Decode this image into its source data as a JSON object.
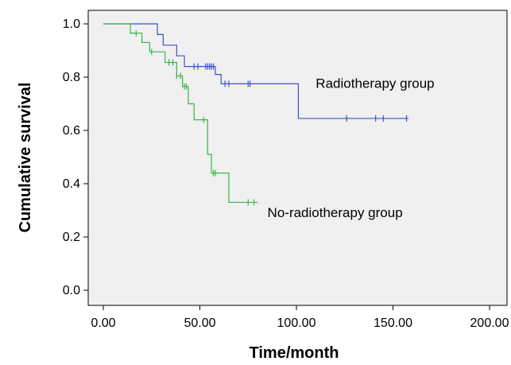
{
  "chart_data": {
    "type": "line",
    "subtype": "kaplan-meier",
    "title": "",
    "xlabel": "Time/month",
    "ylabel": "Cumulative survival",
    "xlim": [
      0,
      200
    ],
    "ylim": [
      0,
      1.0
    ],
    "x_ticks": [
      "0.00",
      "50.00",
      "100.00",
      "150.00",
      "200.00"
    ],
    "y_ticks": [
      "0.0",
      "0.2",
      "0.4",
      "0.6",
      "0.8",
      "1.0"
    ],
    "grid": false,
    "background": "#f0f0f0",
    "series": [
      {
        "name": "Radiotherapy group",
        "color": "#3a53c9",
        "steps": [
          [
            0,
            1.0
          ],
          [
            28,
            0.96
          ],
          [
            31,
            0.92
          ],
          [
            38,
            0.88
          ],
          [
            42,
            0.84
          ],
          [
            58,
            0.81
          ],
          [
            61,
            0.775
          ],
          [
            101,
            0.645
          ]
        ],
        "end_x": 158,
        "censor_x": [
          47,
          49,
          53,
          54,
          55,
          56,
          57,
          63,
          65,
          75,
          76,
          126,
          141,
          145,
          157
        ]
      },
      {
        "name": "No-radiotherapy group",
        "color": "#38b549",
        "steps": [
          [
            0,
            1.0
          ],
          [
            14,
            0.965
          ],
          [
            20,
            0.93
          ],
          [
            24,
            0.895
          ],
          [
            32,
            0.855
          ],
          [
            38,
            0.805
          ],
          [
            41,
            0.765
          ],
          [
            44,
            0.7
          ],
          [
            47,
            0.64
          ],
          [
            54,
            0.51
          ],
          [
            56,
            0.44
          ],
          [
            65,
            0.33
          ]
        ],
        "end_x": 80,
        "censor_x": [
          17,
          25,
          34,
          36,
          38,
          40,
          42,
          43,
          52,
          57,
          58,
          75,
          78
        ]
      }
    ],
    "annotations": [
      {
        "text": "Radiotherapy group",
        "x": 110,
        "y": 0.76
      },
      {
        "text": "No-radiotherapy group",
        "x": 85,
        "y": 0.275
      }
    ]
  }
}
